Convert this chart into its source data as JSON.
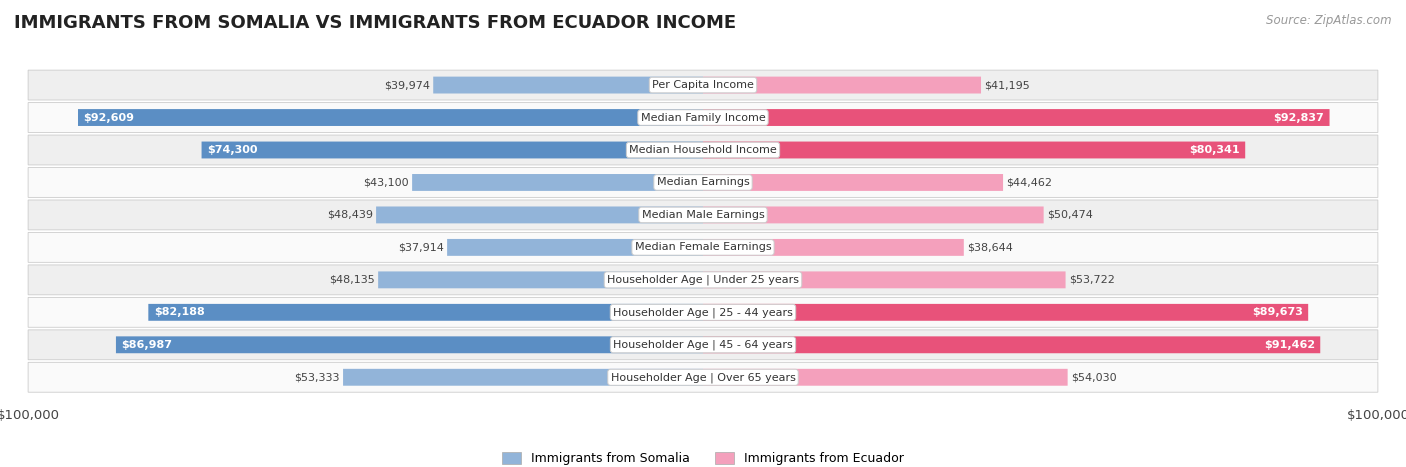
{
  "title": "IMMIGRANTS FROM SOMALIA VS IMMIGRANTS FROM ECUADOR INCOME",
  "source": "Source: ZipAtlas.com",
  "categories": [
    "Per Capita Income",
    "Median Family Income",
    "Median Household Income",
    "Median Earnings",
    "Median Male Earnings",
    "Median Female Earnings",
    "Householder Age | Under 25 years",
    "Householder Age | 25 - 44 years",
    "Householder Age | 45 - 64 years",
    "Householder Age | Over 65 years"
  ],
  "somalia_values": [
    39974,
    92609,
    74300,
    43100,
    48439,
    37914,
    48135,
    82188,
    86987,
    53333
  ],
  "ecuador_values": [
    41195,
    92837,
    80341,
    44462,
    50474,
    38644,
    53722,
    89673,
    91462,
    54030
  ],
  "somalia_labels": [
    "$39,974",
    "$92,609",
    "$74,300",
    "$43,100",
    "$48,439",
    "$37,914",
    "$48,135",
    "$82,188",
    "$86,987",
    "$53,333"
  ],
  "ecuador_labels": [
    "$41,195",
    "$92,837",
    "$80,341",
    "$44,462",
    "$50,474",
    "$38,644",
    "$53,722",
    "$89,673",
    "$91,462",
    "$54,030"
  ],
  "max_value": 100000,
  "somalia_color": "#92b4d9",
  "ecuador_color": "#f4a0bc",
  "somalia_color_strong": "#5b8ec4",
  "ecuador_color_strong": "#e8527a",
  "bar_height": 0.52,
  "row_bg_even": "#efefef",
  "row_bg_odd": "#fafafa",
  "legend_somalia": "Immigrants from Somalia",
  "legend_ecuador": "Immigrants from Ecuador",
  "x_axis_label_left": "$100,000",
  "x_axis_label_right": "$100,000",
  "label_threshold": 60000,
  "title_fontsize": 13,
  "source_fontsize": 8.5,
  "bar_label_fontsize": 8,
  "cat_label_fontsize": 8,
  "legend_fontsize": 9
}
